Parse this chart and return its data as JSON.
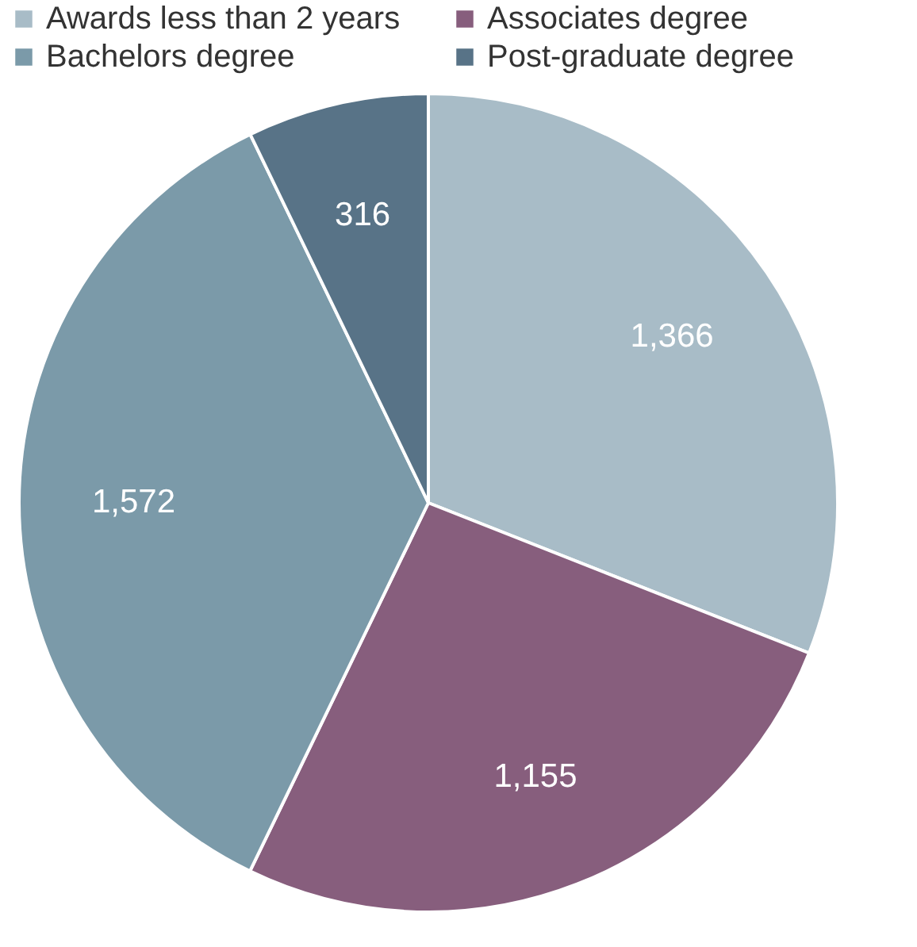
{
  "chart_data": {
    "type": "pie",
    "categories": [
      "Awards less than 2 years",
      "Associates degree",
      "Bachelors degree",
      "Post-graduate degree"
    ],
    "values": [
      1366,
      1155,
      1572,
      316
    ],
    "colors": [
      "#a8bcc7",
      "#875e7d",
      "#7b9aa9",
      "#587387"
    ],
    "value_labels": [
      "1,366",
      "1,155",
      "1,572",
      "316"
    ],
    "legend": "top"
  }
}
